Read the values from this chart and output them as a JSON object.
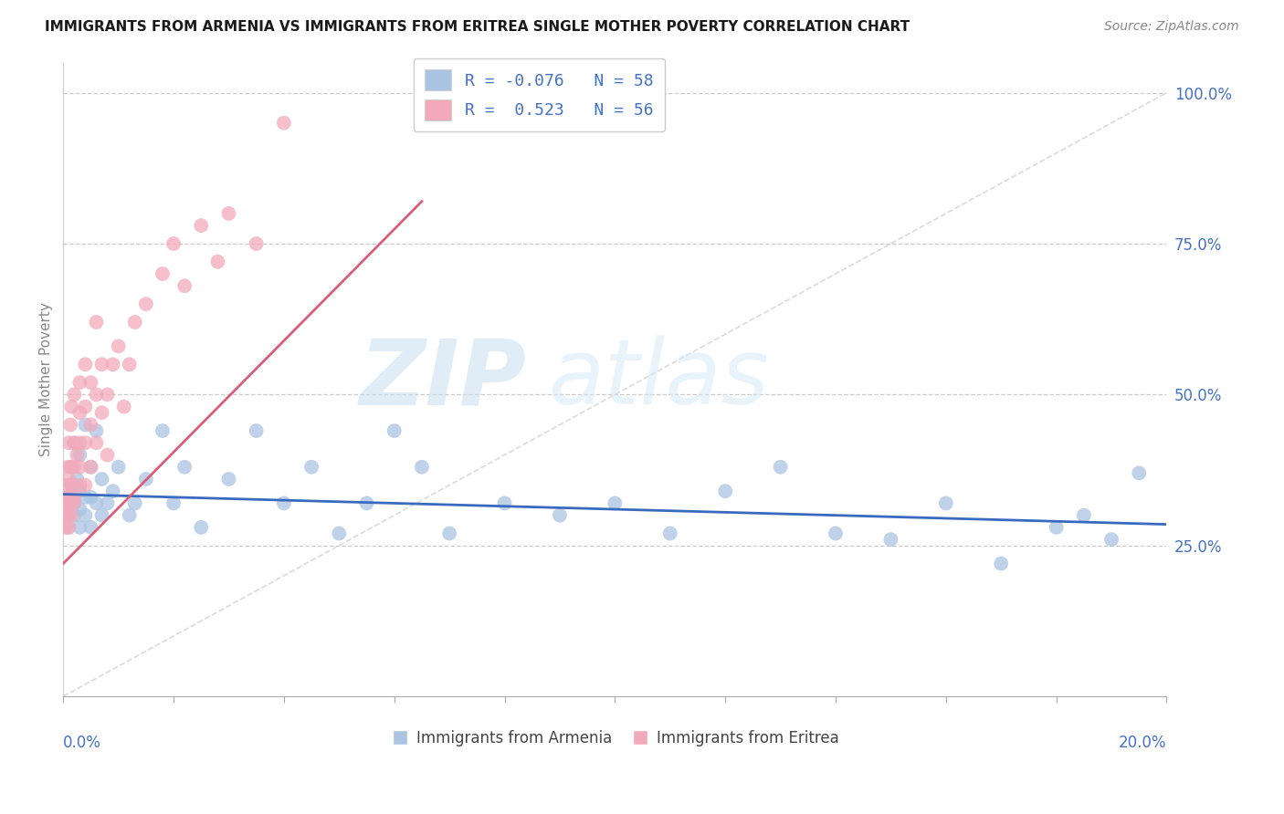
{
  "title": "IMMIGRANTS FROM ARMENIA VS IMMIGRANTS FROM ERITREA SINGLE MOTHER POVERTY CORRELATION CHART",
  "source": "Source: ZipAtlas.com",
  "ylabel": "Single Mother Poverty",
  "armenia_R": -0.076,
  "armenia_N": 58,
  "eritrea_R": 0.523,
  "eritrea_N": 56,
  "armenia_color": "#aac4e2",
  "eritrea_color": "#f2aabb",
  "armenia_line_color": "#3a6abf",
  "eritrea_line_color": "#d95f78",
  "watermark_zip": "ZIP",
  "watermark_atlas": "atlas",
  "xlim": [
    0.0,
    0.2
  ],
  "ylim": [
    0.0,
    1.05
  ],
  "right_yticks": [
    0.25,
    0.5,
    0.75,
    1.0
  ],
  "right_ytick_labels": [
    "25.0%",
    "50.0%",
    "75.0%",
    "100.0%"
  ],
  "armenia_x": [
    0.0005,
    0.001,
    0.001,
    0.001,
    0.0015,
    0.0015,
    0.002,
    0.002,
    0.002,
    0.002,
    0.0025,
    0.003,
    0.003,
    0.003,
    0.003,
    0.004,
    0.004,
    0.004,
    0.005,
    0.005,
    0.005,
    0.006,
    0.006,
    0.007,
    0.007,
    0.008,
    0.009,
    0.01,
    0.012,
    0.013,
    0.015,
    0.018,
    0.02,
    0.022,
    0.025,
    0.03,
    0.035,
    0.04,
    0.045,
    0.05,
    0.055,
    0.06,
    0.065,
    0.07,
    0.08,
    0.09,
    0.1,
    0.11,
    0.12,
    0.13,
    0.14,
    0.15,
    0.16,
    0.17,
    0.18,
    0.185,
    0.19,
    0.195
  ],
  "armenia_y": [
    0.32,
    0.28,
    0.3,
    0.33,
    0.35,
    0.38,
    0.3,
    0.32,
    0.35,
    0.42,
    0.36,
    0.28,
    0.31,
    0.34,
    0.4,
    0.3,
    0.33,
    0.45,
    0.28,
    0.33,
    0.38,
    0.32,
    0.44,
    0.3,
    0.36,
    0.32,
    0.34,
    0.38,
    0.3,
    0.32,
    0.36,
    0.44,
    0.32,
    0.38,
    0.28,
    0.36,
    0.44,
    0.32,
    0.38,
    0.27,
    0.32,
    0.44,
    0.38,
    0.27,
    0.32,
    0.3,
    0.32,
    0.27,
    0.34,
    0.38,
    0.27,
    0.26,
    0.32,
    0.22,
    0.28,
    0.3,
    0.26,
    0.37
  ],
  "eritrea_x": [
    0.0004,
    0.0005,
    0.0005,
    0.0006,
    0.0007,
    0.0008,
    0.0008,
    0.001,
    0.001,
    0.001,
    0.001,
    0.0012,
    0.0013,
    0.0013,
    0.0015,
    0.0015,
    0.0015,
    0.002,
    0.002,
    0.002,
    0.002,
    0.002,
    0.0025,
    0.003,
    0.003,
    0.003,
    0.003,
    0.003,
    0.004,
    0.004,
    0.004,
    0.004,
    0.005,
    0.005,
    0.005,
    0.006,
    0.006,
    0.006,
    0.007,
    0.007,
    0.008,
    0.008,
    0.009,
    0.01,
    0.011,
    0.012,
    0.013,
    0.015,
    0.018,
    0.02,
    0.022,
    0.025,
    0.028,
    0.03,
    0.035,
    0.04
  ],
  "eritrea_y": [
    0.28,
    0.3,
    0.33,
    0.32,
    0.35,
    0.3,
    0.38,
    0.28,
    0.32,
    0.36,
    0.42,
    0.33,
    0.38,
    0.45,
    0.3,
    0.35,
    0.48,
    0.32,
    0.38,
    0.42,
    0.5,
    0.33,
    0.4,
    0.35,
    0.42,
    0.47,
    0.52,
    0.38,
    0.42,
    0.55,
    0.48,
    0.35,
    0.45,
    0.52,
    0.38,
    0.5,
    0.42,
    0.62,
    0.47,
    0.55,
    0.5,
    0.4,
    0.55,
    0.58,
    0.48,
    0.55,
    0.62,
    0.65,
    0.7,
    0.75,
    0.68,
    0.78,
    0.72,
    0.8,
    0.75,
    0.95
  ],
  "eritrea_line_x0": 0.0,
  "eritrea_line_y0": 0.22,
  "eritrea_line_x1": 0.065,
  "eritrea_line_y1": 0.82,
  "armenia_line_x0": 0.0,
  "armenia_line_y0": 0.335,
  "armenia_line_x1": 0.2,
  "armenia_line_y1": 0.285
}
